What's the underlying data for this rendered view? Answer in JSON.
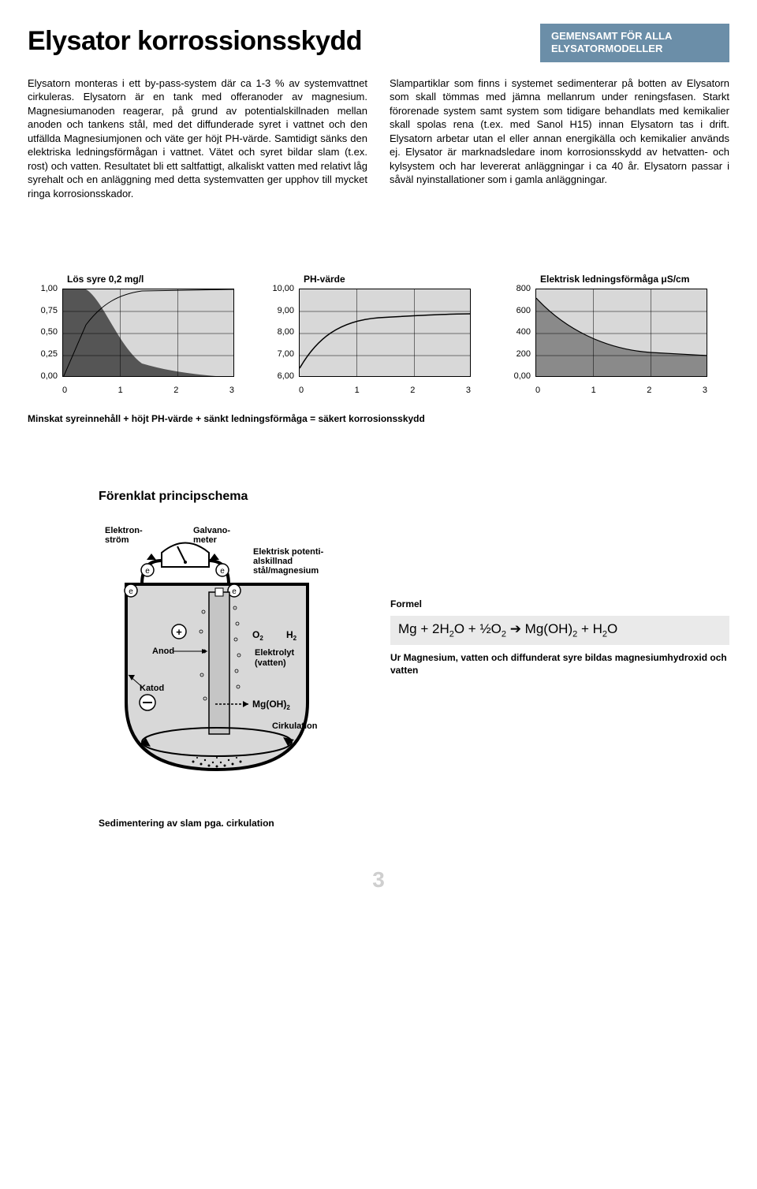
{
  "header": {
    "title": "Elysator korrossionsskydd",
    "badge_line1": "GEMENSAMT FÖR ALLA",
    "badge_line2": "ELYSATORMODELLER",
    "badge_bg": "#6b8ea8",
    "badge_text_color": "#ffffff"
  },
  "intro": {
    "col1": "Elysatorn monteras i ett by-pass-system där ca 1-3 % av systemvattnet cirkuleras. Elysatorn är en tank med offeranoder av magnesium. Magnesiumanoden reagerar, på grund av potentialskillnaden mellan anoden och tankens stål, med det diffunderade syret i vattnet och den utfällda Magnesiumjonen och väte ger höjt PH-värde. Samtidigt sänks den elektriska ledningsförmågan i vattnet. Vätet och syret bildar slam (t.ex. rost) och vatten. Resultatet bli ett saltfattigt, alkaliskt vatten med relativt låg syrehalt och en anläggning med detta systemvatten ger upphov till mycket ringa korrosionsskador.",
    "col2": "Slampartiklar som finns i systemet sedimenterar på botten av Elysatorn som skall tömmas med jämna mellanrum under reningsfasen. Starkt förorenade system samt system som tidigare behandlats med kemikalier skall spolas rena (t.ex. med Sanol H15) innan Elysatorn tas i drift. Elysatorn arbetar utan el eller annan energikälla och kemikalier används ej. Elysator är marknadsledare inom korrosionsskydd av hetvatten- och kylsystem och har levererat anläggningar i ca 40 år. Elysatorn passar i såväl nyinstallationer som i gamla anläggningar."
  },
  "charts": {
    "summary": "Minskat syreinnehåll + höjt PH-värde + sänkt ledningsförmåga = säkert korrosionsskydd",
    "plot_bg": "#d8d8d8",
    "dark_fill": "#555555",
    "med_fill": "#8a8a8a",
    "line_color": "#000000",
    "chart1": {
      "title": "Lös syre 0,2 mg/l",
      "ylabels": [
        "1,00",
        "0,75",
        "0,50",
        "0,25",
        "0,00"
      ],
      "xlabels": [
        "0",
        "1",
        "2",
        "3"
      ],
      "area_points": [
        [
          0,
          0
        ],
        [
          0.4,
          0.6
        ],
        [
          1,
          0.88
        ],
        [
          2,
          0.97
        ],
        [
          3,
          1
        ]
      ]
    },
    "chart2": {
      "title": "PH-värde",
      "ylabels": [
        "10,00",
        "9,00",
        "8,00",
        "7,00",
        "6,00"
      ],
      "xlabels": [
        "0",
        "1",
        "2",
        "3"
      ],
      "line_points": [
        [
          0,
          0.9
        ],
        [
          0.3,
          0.55
        ],
        [
          1,
          0.35
        ],
        [
          2,
          0.3
        ],
        [
          3,
          0.28
        ]
      ]
    },
    "chart3": {
      "title": "Elektrisk ledningsförmåga μS/cm",
      "ylabels": [
        "800",
        "600",
        "400",
        "200",
        "0,00"
      ],
      "xlabels": [
        "0",
        "1",
        "2",
        "3"
      ],
      "area_points": [
        [
          0,
          0.1
        ],
        [
          0.5,
          0.45
        ],
        [
          1.2,
          0.68
        ],
        [
          2,
          0.72
        ],
        [
          3,
          0.75
        ]
      ]
    }
  },
  "schema": {
    "title": "Förenklat principschema",
    "labels": {
      "elektronstrom": "Elektron-\nström",
      "galvanometer": "Galvano-\nmeter",
      "potential": "Elektrisk potenti-\nalskillnad\nstål/magnesium",
      "anod": "Anod",
      "katod": "Katod",
      "o2": "O",
      "o2_sub": "2",
      "h2": "H",
      "h2_sub": "2",
      "elektrolyt": "Elektrolyt\n(vatten)",
      "mgoh": "Mg(OH)",
      "mgoh_sub": "2",
      "cirkulation": "Cirkulation"
    },
    "formula_label": "Formel",
    "formula_html": "Mg + 2H<sub>2</sub>O + ½O<sub>2</sub> ➔ Mg(OH)<sub>2</sub> + H<sub>2</sub>O",
    "formula_desc": "Ur Magnesium, vatten och diffunderat syre bildas magnesiumhydroxid och vatten",
    "caption": "Sedimentering av slam pga. cirkulation"
  },
  "page_number": "3"
}
